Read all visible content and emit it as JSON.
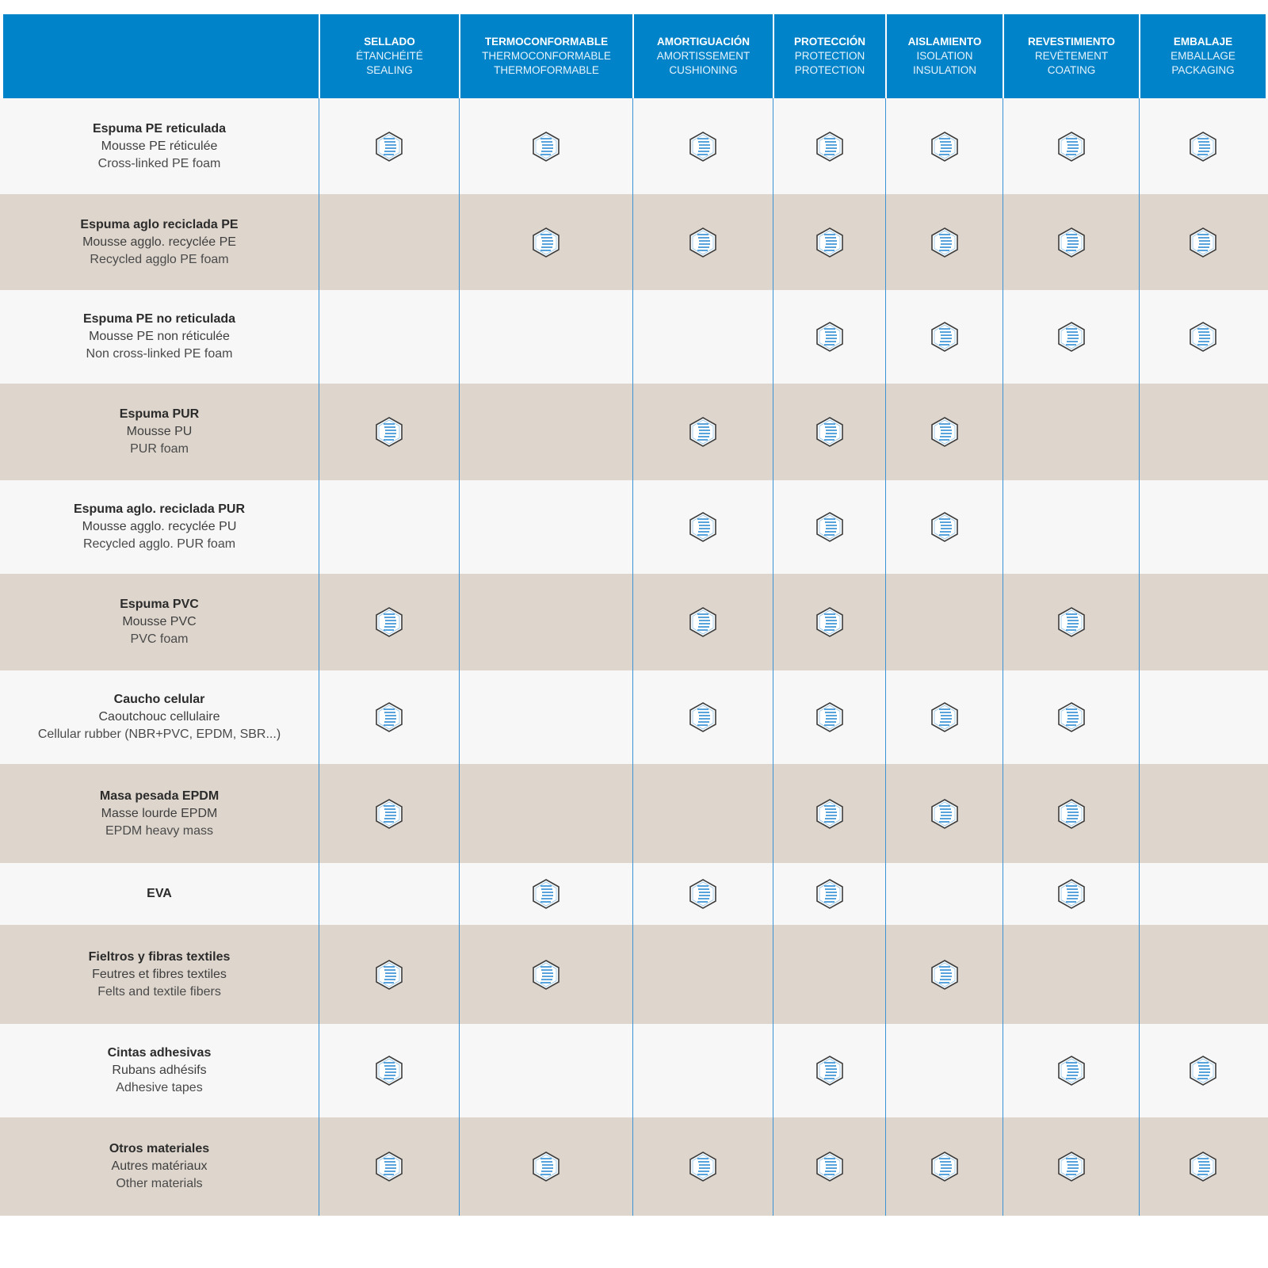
{
  "colors": {
    "header_bg": "#0083c9",
    "row_light": "#f7f7f7",
    "row_dark": "#ded6cd",
    "accent": "#3b93d6"
  },
  "icons": {
    "check_mark": "hexagon-striped-icon"
  },
  "columns": [
    {
      "es": "SELLADO",
      "fr": "ÉTANCHÉITÉ",
      "en": "SEALING"
    },
    {
      "es": "TERMOCONFORMABLE",
      "fr": "THERMOCONFORMABLE",
      "en": "THERMOFORMABLE"
    },
    {
      "es": "AMORTIGUACIÓN",
      "fr": "AMORTISSEMENT",
      "en": "CUSHIONING"
    },
    {
      "es": "PROTECCIÓN",
      "fr": "PROTECTION",
      "en": "PROTECTION"
    },
    {
      "es": "AISLAMIENTO",
      "fr": "ISOLATION",
      "en": "INSULATION"
    },
    {
      "es": "REVESTIMIENTO",
      "fr": "REVÈTEMENT",
      "en": "COATING"
    },
    {
      "es": "EMBALAJE",
      "fr": "EMBALLAGE",
      "en": "PACKAGING"
    }
  ],
  "rows": [
    {
      "es": "Espuma PE reticulada",
      "fr": "Mousse PE réticulée",
      "en": "Cross-linked PE foam",
      "marks": [
        1,
        1,
        1,
        1,
        1,
        1,
        1
      ]
    },
    {
      "es": "Espuma aglo reciclada PE",
      "fr": "Mousse agglo. recyclée PE",
      "en": "Recycled agglo PE foam",
      "marks": [
        0,
        1,
        1,
        1,
        1,
        1,
        1
      ]
    },
    {
      "es": "Espuma PE no reticulada",
      "fr": "Mousse PE non réticulée",
      "en": "Non cross-linked PE foam",
      "marks": [
        0,
        0,
        0,
        1,
        1,
        1,
        1
      ]
    },
    {
      "es": "Espuma PUR",
      "fr": "Mousse PU",
      "en": "PUR foam",
      "marks": [
        1,
        0,
        1,
        1,
        1,
        0,
        0
      ]
    },
    {
      "es": "Espuma aglo. reciclada PUR",
      "fr": "Mousse agglo. recyclée PU",
      "en": "Recycled agglo. PUR foam",
      "marks": [
        0,
        0,
        1,
        1,
        1,
        0,
        0
      ]
    },
    {
      "es": "Espuma PVC",
      "fr": "Mousse PVC",
      "en": "PVC foam",
      "marks": [
        1,
        0,
        1,
        1,
        0,
        1,
        0
      ]
    },
    {
      "es": "Caucho celular",
      "fr": "Caoutchouc cellulaire",
      "en": "Cellular rubber (NBR+PVC, EPDM, SBR...)",
      "marks": [
        1,
        0,
        1,
        1,
        1,
        1,
        0
      ]
    },
    {
      "es": "Masa pesada EPDM",
      "fr": "Masse lourde EPDM",
      "en": "EPDM heavy mass",
      "marks": [
        1,
        0,
        0,
        1,
        1,
        1,
        0
      ]
    },
    {
      "es": "EVA",
      "fr": "",
      "en": "",
      "marks": [
        0,
        1,
        1,
        1,
        0,
        1,
        0
      ]
    },
    {
      "es": "Fieltros y fibras textiles",
      "fr": "Feutres et fibres textiles",
      "en": "Felts and textile fibers",
      "marks": [
        1,
        1,
        0,
        0,
        1,
        0,
        0
      ]
    },
    {
      "es": "Cintas adhesivas",
      "fr": "Rubans adhésifs",
      "en": "Adhesive tapes",
      "marks": [
        1,
        0,
        0,
        1,
        0,
        1,
        1
      ]
    },
    {
      "es": "Otros materiales",
      "fr": "Autres matériaux",
      "en": "Other materials",
      "marks": [
        1,
        1,
        1,
        1,
        1,
        1,
        1
      ]
    }
  ]
}
